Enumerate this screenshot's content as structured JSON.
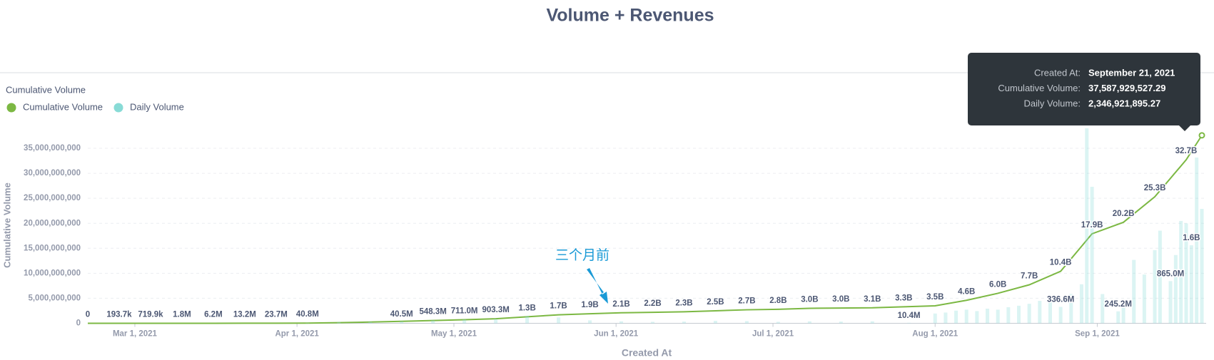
{
  "chart_data": {
    "type": "combo",
    "title": "Volume + Revenues",
    "legend_title": "Cumulative Volume",
    "y_label": "Cumulative Volume",
    "x_label": "Created At",
    "annotation": "三个月前",
    "grid": true,
    "xlim": [
      "2021-02-20",
      "2021-09-21"
    ],
    "xticks": [
      {
        "value": "2021-03-01",
        "label": "Mar 1, 2021"
      },
      {
        "value": "2021-04-01",
        "label": "Apr 1, 2021"
      },
      {
        "value": "2021-05-01",
        "label": "May 1, 2021"
      },
      {
        "value": "2021-06-01",
        "label": "Jun 1, 2021"
      },
      {
        "value": "2021-07-01",
        "label": "Jul 1, 2021"
      },
      {
        "value": "2021-08-01",
        "label": "Aug 1, 2021"
      },
      {
        "value": "2021-09-01",
        "label": "Sep 1, 2021"
      }
    ],
    "ylim": [
      0,
      39000000000
    ],
    "yticks": [
      0,
      {
        "value": 5000000000,
        "label": "5,000,000,000"
      },
      {
        "value": 10000000000,
        "label": "10,000,000,000"
      },
      {
        "value": 15000000000,
        "label": "15,000,000,000"
      },
      {
        "value": 20000000000,
        "label": "20,000,000,000"
      },
      {
        "value": 25000000000,
        "label": "25,000,000,000"
      },
      {
        "value": 30000000000,
        "label": "30,000,000,000"
      },
      {
        "value": 35000000000,
        "label": "35,000,000,000"
      }
    ],
    "y2lim": [
      0,
      4000000000
    ],
    "series": [
      {
        "name": "Cumulative Volume",
        "color": "#7cb843",
        "type": "line",
        "x": [
          "2021-02-20",
          "2021-02-26",
          "2021-03-04",
          "2021-03-10",
          "2021-03-16",
          "2021-03-22",
          "2021-03-28",
          "2021-04-03",
          "2021-04-09",
          "2021-04-15",
          "2021-04-21",
          "2021-04-27",
          "2021-05-03",
          "2021-05-09",
          "2021-05-15",
          "2021-05-21",
          "2021-05-27",
          "2021-06-02",
          "2021-06-08",
          "2021-06-14",
          "2021-06-20",
          "2021-06-26",
          "2021-07-02",
          "2021-07-08",
          "2021-07-14",
          "2021-07-20",
          "2021-07-26",
          "2021-08-01",
          "2021-08-07",
          "2021-08-13",
          "2021-08-19",
          "2021-08-25",
          "2021-08-31",
          "2021-09-06",
          "2021-09-12",
          "2021-09-18",
          "2021-09-21"
        ],
        "values": [
          0,
          193700,
          719900,
          1800000,
          6200000,
          13200000,
          23700000,
          40800000,
          120000000,
          250000000,
          400000000,
          548300000,
          711000000,
          903300000,
          1300000000,
          1700000000,
          1900000000,
          2100000000,
          2200000000,
          2300000000,
          2500000000,
          2700000000,
          2800000000,
          3000000000,
          3040000000,
          3100000000,
          3300000000,
          3500000000,
          4600000000,
          6000000000,
          7700000000,
          10400000000,
          17900000000,
          20200000000,
          25300000000,
          32700000000,
          37587929527.29
        ],
        "value_labels": [
          "0",
          "193.7k",
          "719.9k",
          "1.8M",
          "6.2M",
          "13.2M",
          "23.7M",
          "40.8M",
          null,
          null,
          null,
          "548.3M",
          "711.0M",
          "903.3M",
          "1.3B",
          "1.7B",
          "1.9B",
          "2.1B",
          "2.2B",
          "2.3B",
          "2.5B",
          "2.7B",
          "2.8B",
          "3.0B",
          "3.0B",
          "3.1B",
          "3.3B",
          "3.5B",
          "4.6B",
          "6.0B",
          "7.7B",
          "10.4B",
          "17.9B",
          "20.2B",
          "25.3B",
          "32.7B",
          null
        ]
      },
      {
        "name": "Daily Volume",
        "color": "#88dbd6",
        "type": "bar",
        "axis": "y2",
        "x": [
          "2021-04-03",
          "2021-04-09",
          "2021-04-15",
          "2021-04-21",
          "2021-04-27",
          "2021-05-03",
          "2021-05-09",
          "2021-05-15",
          "2021-05-21",
          "2021-05-27",
          "2021-06-02",
          "2021-06-08",
          "2021-06-14",
          "2021-06-20",
          "2021-06-26",
          "2021-07-02",
          "2021-07-08",
          "2021-07-14",
          "2021-07-20",
          "2021-07-27",
          "2021-08-01",
          "2021-08-03",
          "2021-08-05",
          "2021-08-07",
          "2021-08-09",
          "2021-08-11",
          "2021-08-13",
          "2021-08-15",
          "2021-08-17",
          "2021-08-19",
          "2021-08-21",
          "2021-08-23",
          "2021-08-25",
          "2021-08-27",
          "2021-08-29",
          "2021-08-30",
          "2021-08-31",
          "2021-09-02",
          "2021-09-05",
          "2021-09-06",
          "2021-09-08",
          "2021-09-10",
          "2021-09-12",
          "2021-09-13",
          "2021-09-15",
          "2021-09-16",
          "2021-09-17",
          "2021-09-18",
          "2021-09-19",
          "2021-09-20",
          "2021-09-21"
        ],
        "values": [
          10000000,
          25000000,
          30000000,
          40500000,
          60000000,
          80000000,
          90000000,
          150000000,
          120000000,
          60000000,
          40000000,
          30000000,
          35000000,
          50000000,
          45000000,
          30000000,
          40000000,
          35000000,
          40000000,
          10400000,
          200000000,
          220000000,
          260000000,
          280000000,
          250000000,
          300000000,
          280000000,
          330000000,
          360000000,
          400000000,
          460000000,
          500000000,
          336600000,
          600000000,
          800000000,
          4000000000,
          2800000000,
          600000000,
          245200000,
          400000000,
          1300000000,
          1000000000,
          1500000000,
          1900000000,
          865000000,
          1400000000,
          2100000000,
          2050000000,
          1600000000,
          3400000000,
          2346921895.27
        ],
        "value_labels": [
          null,
          null,
          null,
          "40.5M",
          null,
          null,
          null,
          null,
          null,
          null,
          null,
          null,
          null,
          null,
          null,
          null,
          null,
          null,
          null,
          "10.4M",
          null,
          null,
          null,
          null,
          null,
          null,
          null,
          null,
          null,
          null,
          null,
          null,
          "336.6M",
          null,
          null,
          null,
          null,
          null,
          "245.2M",
          null,
          null,
          null,
          null,
          null,
          "865.0M",
          null,
          null,
          null,
          "1.6B",
          null,
          null
        ]
      }
    ],
    "tooltip": [
      {
        "label": "Created At:",
        "value": "September 21, 2021"
      },
      {
        "label": "Cumulative Volume:",
        "value": "37,587,929,527.29"
      },
      {
        "label": "Daily Volume:",
        "value": "2,346,921,895.27"
      }
    ]
  }
}
